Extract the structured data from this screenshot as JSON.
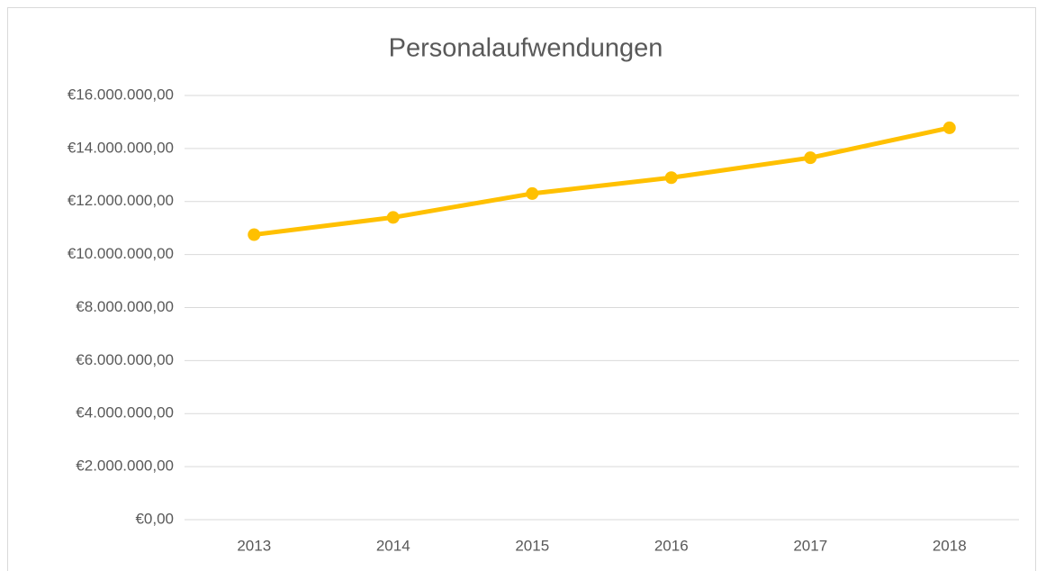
{
  "chart_data": {
    "type": "line",
    "title": "Personalaufwendungen",
    "categories": [
      "2013",
      "2014",
      "2015",
      "2016",
      "2017",
      "2018"
    ],
    "series": [
      {
        "name": "Personalaufwendungen",
        "color": "#ffc000",
        "values": [
          10750000,
          11400000,
          12300000,
          12900000,
          13650000,
          14780000
        ]
      }
    ],
    "ylim": [
      0,
      16000000
    ],
    "yticks": [
      {
        "value": 0,
        "label": "€0,00"
      },
      {
        "value": 2000000,
        "label": "€2.000.000,00"
      },
      {
        "value": 4000000,
        "label": "€4.000.000,00"
      },
      {
        "value": 6000000,
        "label": "€6.000.000,00"
      },
      {
        "value": 8000000,
        "label": "€8.000.000,00"
      },
      {
        "value": 10000000,
        "label": "€10.000.000,00"
      },
      {
        "value": 12000000,
        "label": "€12.000.000,00"
      },
      {
        "value": 14000000,
        "label": "€14.000.000,00"
      },
      {
        "value": 16000000,
        "label": "€16.000.000,00"
      }
    ],
    "grid": true
  }
}
